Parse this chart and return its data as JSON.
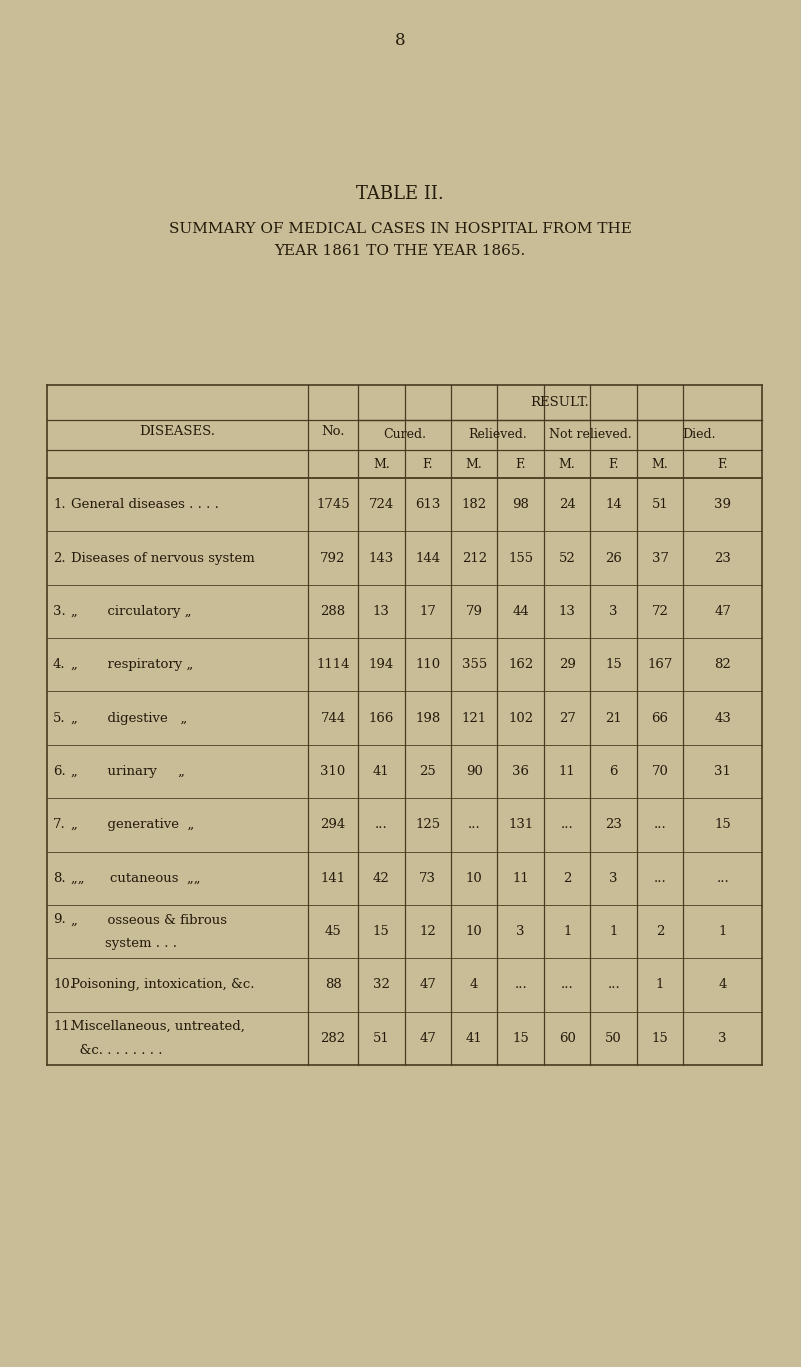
{
  "page_number": "8",
  "table_title": "TABLE II.",
  "subtitle_line1": "SUMMARY OF MEDICAL CASES IN HOSPITAL FROM THE",
  "subtitle_line2": "YEAR 1861 TO THE YEAR 1865.",
  "bg_color": "#c9bd98",
  "text_color": "#231a0a",
  "header_result": "RESULT.",
  "header_diseases": "DISEASES.",
  "header_no": "No.",
  "col_headers_top": [
    "Cured.",
    "Relieved.",
    "Not relieved.",
    "Died."
  ],
  "col_headers_mf": [
    "M.",
    "F.",
    "M.",
    "F.",
    "M.",
    "F.",
    "M.",
    "F."
  ],
  "rows": [
    {
      "num": "1.",
      "disease_lines": [
        "General diseases . . . ."
      ],
      "no": "1745",
      "vals": [
        "724",
        "613",
        "182",
        "98",
        "24",
        "14",
        "51",
        "39"
      ]
    },
    {
      "num": "2.",
      "disease_lines": [
        "Diseases of nervous system"
      ],
      "no": "792",
      "vals": [
        "143",
        "144",
        "212",
        "155",
        "52",
        "26",
        "37",
        "23"
      ]
    },
    {
      "num": "3.",
      "disease_lines": [
        "„       circulatory „"
      ],
      "no": "288",
      "vals": [
        "13",
        "17",
        "79",
        "44",
        "13",
        "3",
        "72",
        "47"
      ]
    },
    {
      "num": "4.",
      "disease_lines": [
        "„       respiratory „"
      ],
      "no": "1114",
      "vals": [
        "194",
        "110",
        "355",
        "162",
        "29",
        "15",
        "167",
        "82"
      ]
    },
    {
      "num": "5.",
      "disease_lines": [
        "„       digestive   „"
      ],
      "no": "744",
      "vals": [
        "166",
        "198",
        "121",
        "102",
        "27",
        "21",
        "66",
        "43"
      ]
    },
    {
      "num": "6.",
      "disease_lines": [
        "„       urinary     „"
      ],
      "no": "310",
      "vals": [
        "41",
        "25",
        "90",
        "36",
        "11",
        "6",
        "70",
        "31"
      ]
    },
    {
      "num": "7.",
      "disease_lines": [
        "„       generative  „"
      ],
      "no": "294",
      "vals": [
        "...",
        "125",
        "...",
        "131",
        "...",
        "23",
        "...",
        "15"
      ]
    },
    {
      "num": "8.",
      "disease_lines": [
        "„„      cutaneous  „„"
      ],
      "no": "141",
      "vals": [
        "42",
        "73",
        "10",
        "11",
        "2",
        "3",
        "...",
        "..."
      ]
    },
    {
      "num": "9.",
      "disease_lines": [
        "„       osseous & fibrous",
        "        system . . ."
      ],
      "no": "45",
      "vals": [
        "15",
        "12",
        "10",
        "3",
        "1",
        "1",
        "2",
        "1"
      ]
    },
    {
      "num": "10.",
      "disease_lines": [
        "Poisoning, intoxication, &c."
      ],
      "no": "88",
      "vals": [
        "32",
        "47",
        "4",
        "...",
        "...",
        "...",
        "1",
        "4"
      ]
    },
    {
      "num": "11.",
      "disease_lines": [
        "Miscellaneous, untreated,",
        "  &c. . . . . . . ."
      ],
      "no": "282",
      "vals": [
        "51",
        "47",
        "41",
        "15",
        "60",
        "50",
        "15",
        "3"
      ]
    }
  ]
}
